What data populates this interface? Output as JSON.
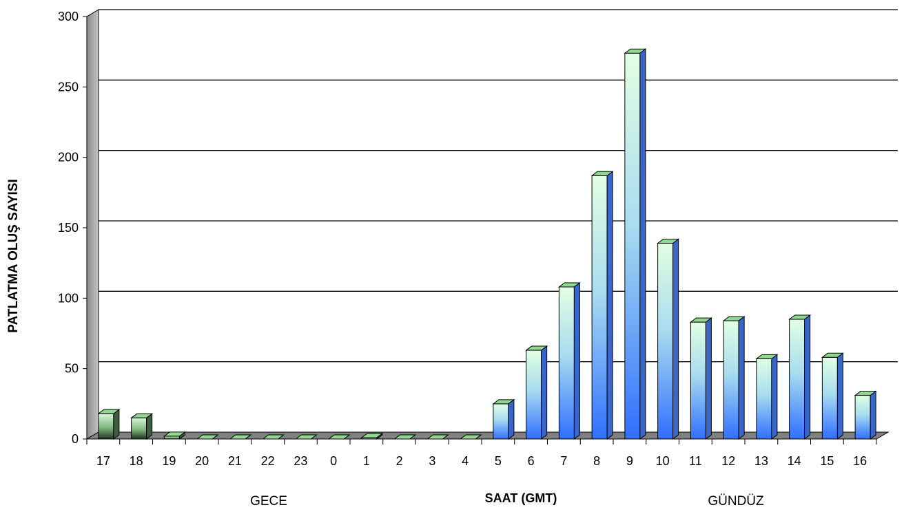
{
  "chart_data": {
    "type": "bar",
    "title": "",
    "ylabel": "PATLATMA OLUŞ SAYISI",
    "xlabel": "SAAT (GMT)",
    "region_labels": {
      "left": "GECE",
      "right": "GÜNDÜZ"
    },
    "categories": [
      "17",
      "18",
      "19",
      "20",
      "21",
      "22",
      "23",
      "0",
      "1",
      "2",
      "3",
      "4",
      "5",
      "6",
      "7",
      "8",
      "9",
      "10",
      "11",
      "12",
      "13",
      "14",
      "15",
      "16"
    ],
    "values": [
      18,
      15,
      2,
      0,
      0,
      0,
      0,
      0,
      1,
      0,
      0,
      0,
      25,
      63,
      108,
      187,
      274,
      139,
      83,
      84,
      57,
      85,
      58,
      31
    ],
    "ylim": [
      0,
      300
    ],
    "yticks": [
      0,
      50,
      100,
      150,
      200,
      250,
      300
    ],
    "grid": true,
    "legend": "none",
    "style": "3d-column",
    "colors": {
      "night_bar_top": "#d9f5d9",
      "night_bar_bottom": "#1e3a1e",
      "day_bar_top": "#dcffdc",
      "day_bar_mid": "#9cd6f0",
      "day_bar_bottom": "#2f6fff",
      "floor": "#808080",
      "left_wall": "#a0a0a0"
    }
  }
}
